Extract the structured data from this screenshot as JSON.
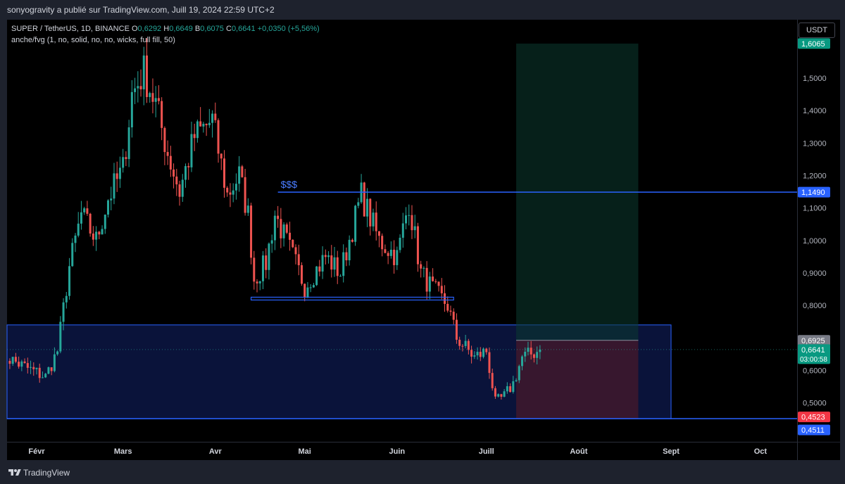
{
  "header": {
    "publish_line": "sonyogravity a publié sur TradingView.com, Juill 19, 2024 22:59 UTC+2"
  },
  "legend": {
    "symbol": "SUPER / TetherUS, 1D, BINANCE",
    "o_label": "O",
    "o_value": "0,6292",
    "h_label": "H",
    "h_value": "0,6649",
    "b_label": "B",
    "b_value": "0,6075",
    "c_label": "C",
    "c_value": "0,6641",
    "change": "+0,0350 (+5,56%)",
    "indicator": "anche/fvg (1, no, solid, no, no, wicks, full fill, 50)"
  },
  "currency_button": "USDT",
  "annotation_text": "$$$",
  "footer": {
    "brand": "TradingView"
  },
  "colors": {
    "up": "#26a69a",
    "down": "#ef5350",
    "zone_line": "#2962ff",
    "background": "#000000"
  },
  "chart_data": {
    "type": "candlestick",
    "x_ticks": [
      "Févr",
      "Mars",
      "Avr",
      "Mai",
      "Juin",
      "Juill",
      "Août",
      "Sept",
      "Oct"
    ],
    "y_ticks": [
      "1,5000",
      "1,4000",
      "1,3000",
      "1,2000",
      "1,1000",
      "1,0000",
      "0,9000",
      "0,8000",
      "0,6000",
      "0,5000"
    ],
    "ylim": [
      0.38,
      1.68
    ],
    "price_labels": [
      {
        "value": 1.6065,
        "text": "1,6065",
        "color": "#089981"
      },
      {
        "value": 1.149,
        "text": "1,1490",
        "color": "#2962ff"
      },
      {
        "value": 0.6925,
        "text": "0,6925",
        "color": "#787b86"
      },
      {
        "value": 0.6641,
        "text": "0,6641",
        "sub": "03:00:58",
        "color": "#089981"
      },
      {
        "value": 0.4523,
        "text": "0,4523",
        "color": "#f23645"
      },
      {
        "value": 0.4511,
        "text": "0,4511",
        "color": "#2962ff"
      }
    ],
    "levels": {
      "resistance": 1.149,
      "support_line": 0.821,
      "zone_top": 0.74,
      "zone_bottom": 0.4511,
      "current": 0.6641,
      "entry": 0.6925,
      "stop": 0.4523,
      "target": 1.6065
    },
    "key_points": [
      {
        "date": "Jan 20",
        "price": 0.65
      },
      {
        "date": "Jan 28",
        "price": 0.61
      },
      {
        "date": "Feb 4",
        "price": 0.58
      },
      {
        "date": "Feb 8",
        "price": 0.66
      },
      {
        "date": "Feb 12",
        "price": 0.92
      },
      {
        "date": "Feb 16",
        "price": 1.08
      },
      {
        "date": "Feb 21",
        "price": 1.0
      },
      {
        "date": "Feb 25",
        "price": 1.13
      },
      {
        "date": "Mar 1",
        "price": 1.22
      },
      {
        "date": "Mar 4",
        "price": 1.45
      },
      {
        "date": "Mar 8",
        "price": 1.52
      },
      {
        "date": "Mar 12",
        "price": 1.42
      },
      {
        "date": "Mar 16",
        "price": 1.27
      },
      {
        "date": "Mar 20",
        "price": 1.15
      },
      {
        "date": "Mar 25",
        "price": 1.32
      },
      {
        "date": "Mar 31",
        "price": 1.37
      },
      {
        "date": "Apr 5",
        "price": 1.14
      },
      {
        "date": "Apr 9",
        "price": 1.2
      },
      {
        "date": "Apr 12",
        "price": 1.08
      },
      {
        "date": "Apr 14",
        "price": 0.88
      },
      {
        "date": "Apr 18",
        "price": 0.93
      },
      {
        "date": "Apr 21",
        "price": 1.08
      },
      {
        "date": "Apr 27",
        "price": 0.95
      },
      {
        "date": "May 1",
        "price": 0.86
      },
      {
        "date": "May 8",
        "price": 0.95
      },
      {
        "date": "May 13",
        "price": 0.9
      },
      {
        "date": "May 20",
        "price": 1.14
      },
      {
        "date": "May 26",
        "price": 1.0
      },
      {
        "date": "Jun 1",
        "price": 0.95
      },
      {
        "date": "Jun 5",
        "price": 1.12
      },
      {
        "date": "Jun 9",
        "price": 0.9
      },
      {
        "date": "Jun 13",
        "price": 0.85
      },
      {
        "date": "Jun 18",
        "price": 0.8
      },
      {
        "date": "Jun 21",
        "price": 0.7
      },
      {
        "date": "Jun 27",
        "price": 0.64
      },
      {
        "date": "Jul 1",
        "price": 0.66
      },
      {
        "date": "Jul 4",
        "price": 0.5
      },
      {
        "date": "Jul 7",
        "price": 0.52
      },
      {
        "date": "Jul 10",
        "price": 0.56
      },
      {
        "date": "Jul 13",
        "price": 0.64
      },
      {
        "date": "Jul 16",
        "price": 0.65
      },
      {
        "date": "Jul 19",
        "price": 0.6641
      }
    ]
  }
}
